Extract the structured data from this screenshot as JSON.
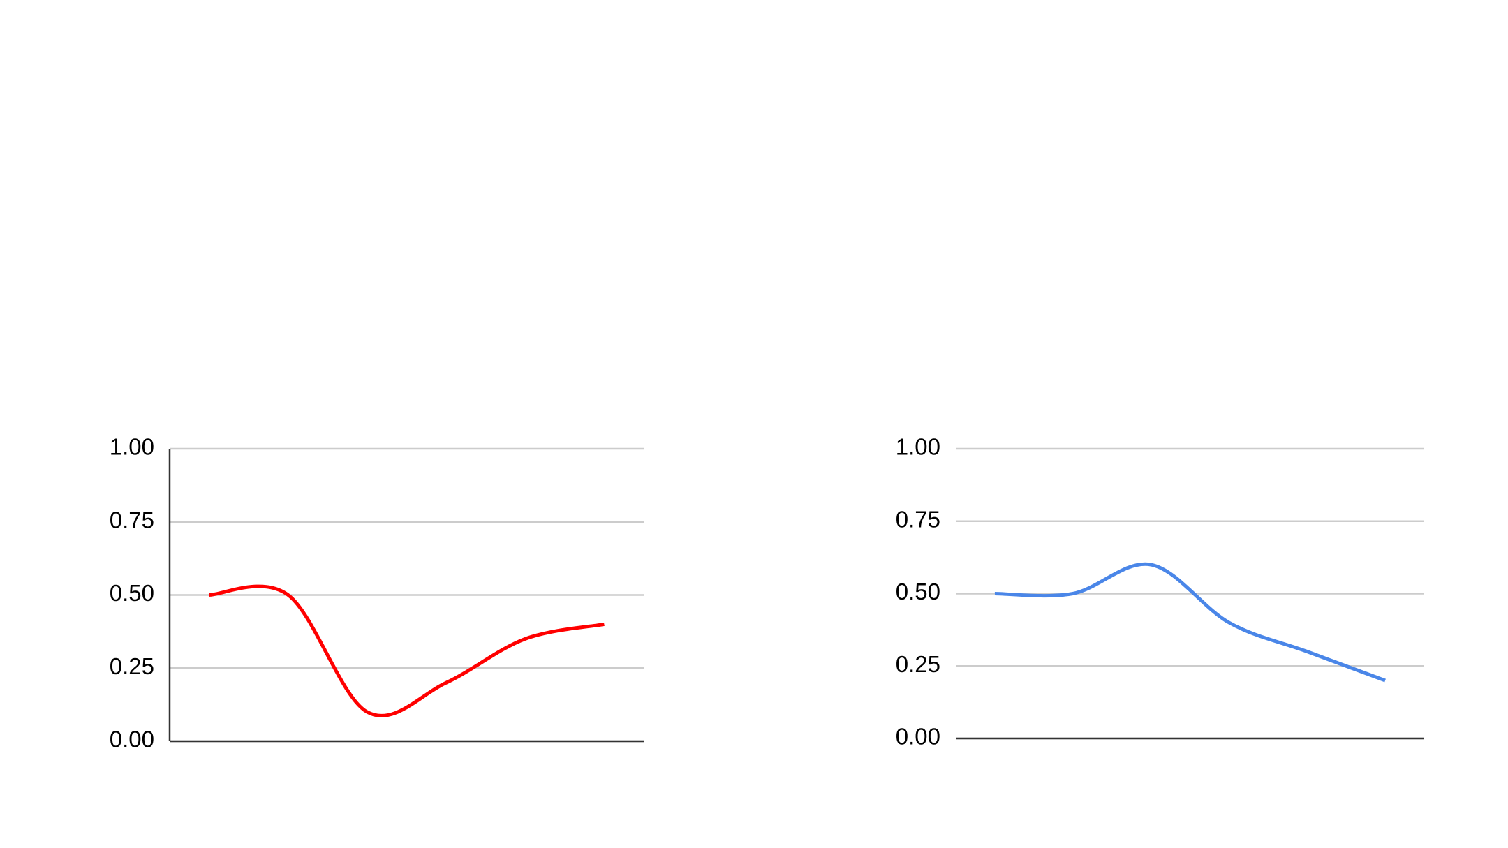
{
  "chart_data": [
    {
      "type": "line",
      "smooth": true,
      "y_axis_line": true,
      "categories": [
        null,
        null,
        null,
        null,
        null,
        null
      ],
      "values": [
        0.5,
        0.5,
        0.1,
        0.2,
        0.35,
        0.4
      ],
      "color": "#ff0000",
      "ylim": [
        0,
        1
      ],
      "yticks": [
        {
          "value": 0,
          "label": "0.00"
        },
        {
          "value": 0.25,
          "label": "0.25"
        },
        {
          "value": 0.5,
          "label": "0.50"
        },
        {
          "value": 0.75,
          "label": "0.75"
        },
        {
          "value": 1,
          "label": "1.00"
        }
      ],
      "grid": true
    },
    {
      "type": "line",
      "smooth": true,
      "y_axis_line": false,
      "categories": [
        null,
        null,
        null,
        null,
        null,
        null
      ],
      "values": [
        0.5,
        0.5,
        0.6,
        0.4,
        0.3,
        0.2
      ],
      "color": "#4a86e8",
      "ylim": [
        0,
        1
      ],
      "yticks": [
        {
          "value": 0,
          "label": "0.00"
        },
        {
          "value": 0.25,
          "label": "0.25"
        },
        {
          "value": 0.5,
          "label": "0.50"
        },
        {
          "value": 0.75,
          "label": "0.75"
        },
        {
          "value": 1,
          "label": "1.00"
        }
      ],
      "grid": true
    }
  ]
}
